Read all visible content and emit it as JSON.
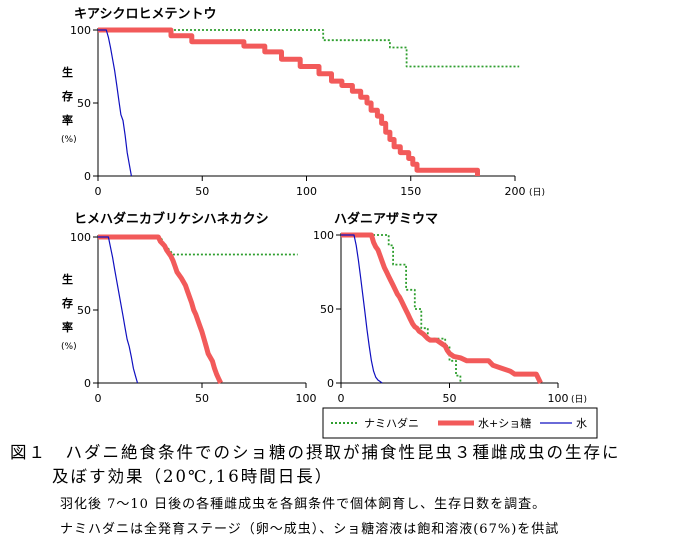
{
  "legend": {
    "items": [
      {
        "key": "nami",
        "label": "ナミハダニ",
        "color": "#2e9e2e"
      },
      {
        "key": "sugar",
        "label": "水+ショ糖",
        "color": "#f25a5a"
      },
      {
        "key": "water",
        "label": "水",
        "color": "#1010c0"
      }
    ]
  },
  "caption": {
    "title_line1": "図１　ハダニ絶食条件でのショ糖の摂取が捕食性昆虫３種雌成虫の生存に",
    "title_line2": "及ぼす効果（20℃,16時間日長）",
    "note1": "羽化後 7〜10 日後の各種雌成虫を各餌条件で個体飼育し、生存日数を調査。",
    "note2": "ナミハダニは全発育ステージ（卵〜成虫）、ショ糖溶液は飽和溶液(67%)を供試"
  },
  "chart_data": [
    {
      "type": "line",
      "title": "キアシクロヒメテントウ",
      "ylabel": "生存率",
      "yunit": "(%)",
      "xunit": "(日)",
      "xlim": [
        0,
        200
      ],
      "ylim": [
        0,
        100
      ],
      "xticks": [
        0,
        50,
        100,
        150,
        200
      ],
      "yticks": [
        0,
        50,
        100
      ],
      "series": [
        {
          "key": "nami",
          "points": [
            [
              0,
              100
            ],
            [
              108,
              100
            ],
            [
              108,
              93
            ],
            [
              140,
              93
            ],
            [
              140,
              88
            ],
            [
              148,
              88
            ],
            [
              148,
              75
            ],
            [
              202,
              75
            ]
          ]
        },
        {
          "key": "sugar",
          "points": [
            [
              0,
              100
            ],
            [
              35,
              100
            ],
            [
              35,
              96
            ],
            [
              45,
              96
            ],
            [
              45,
              92
            ],
            [
              70,
              92
            ],
            [
              70,
              89
            ],
            [
              80,
              89
            ],
            [
              80,
              85
            ],
            [
              88,
              85
            ],
            [
              88,
              80
            ],
            [
              97,
              80
            ],
            [
              97,
              75
            ],
            [
              106,
              75
            ],
            [
              106,
              70
            ],
            [
              112,
              70
            ],
            [
              112,
              65
            ],
            [
              117,
              65
            ],
            [
              117,
              62
            ],
            [
              122,
              62
            ],
            [
              122,
              58
            ],
            [
              126,
              58
            ],
            [
              126,
              54
            ],
            [
              129,
              54
            ],
            [
              129,
              50
            ],
            [
              131,
              50
            ],
            [
              131,
              45
            ],
            [
              134,
              45
            ],
            [
              134,
              41
            ],
            [
              136,
              41
            ],
            [
              136,
              36
            ],
            [
              138,
              36
            ],
            [
              138,
              30
            ],
            [
              140,
              30
            ],
            [
              140,
              25
            ],
            [
              142,
              25
            ],
            [
              142,
              20
            ],
            [
              145,
              20
            ],
            [
              145,
              16
            ],
            [
              149,
              16
            ],
            [
              149,
              12
            ],
            [
              151,
              12
            ],
            [
              151,
              8
            ],
            [
              153,
              8
            ],
            [
              153,
              4
            ],
            [
              182,
              4
            ],
            [
              182,
              0
            ]
          ]
        },
        {
          "key": "water",
          "points": [
            [
              0,
              100
            ],
            [
              4,
              100
            ],
            [
              5,
              95
            ],
            [
              6,
              88
            ],
            [
              7,
              80
            ],
            [
              8,
              72
            ],
            [
              9,
              62
            ],
            [
              10,
              52
            ],
            [
              11,
              42
            ],
            [
              12,
              38
            ],
            [
              13,
              28
            ],
            [
              14,
              16
            ],
            [
              15,
              8
            ],
            [
              16,
              0
            ]
          ]
        }
      ]
    },
    {
      "type": "line",
      "title": "ヒメハダニカブリケシハネカクシ",
      "ylabel": "生存率",
      "yunit": "(%)",
      "xlim": [
        0,
        100
      ],
      "ylim": [
        0,
        100
      ],
      "xticks": [
        0,
        50,
        100
      ],
      "yticks": [
        0,
        50,
        100
      ],
      "series": [
        {
          "key": "nami",
          "points": [
            [
              0,
              100
            ],
            [
              30,
              100
            ],
            [
              32,
              95
            ],
            [
              35,
              90
            ],
            [
              36,
              88
            ],
            [
              96,
              88
            ]
          ]
        },
        {
          "key": "sugar",
          "points": [
            [
              0,
              100
            ],
            [
              29,
              100
            ],
            [
              30,
              97
            ],
            [
              32,
              94
            ],
            [
              33,
              91
            ],
            [
              35,
              87
            ],
            [
              36,
              84
            ],
            [
              37,
              80
            ],
            [
              38,
              76
            ],
            [
              40,
              72
            ],
            [
              42,
              67
            ],
            [
              43,
              63
            ],
            [
              44,
              59
            ],
            [
              45,
              55
            ],
            [
              46,
              50
            ],
            [
              47,
              47
            ],
            [
              48,
              43
            ],
            [
              49,
              39
            ],
            [
              50,
              35
            ],
            [
              51,
              30
            ],
            [
              52,
              25
            ],
            [
              53,
              20
            ],
            [
              55,
              15
            ],
            [
              56,
              10
            ],
            [
              57,
              6
            ],
            [
              58,
              3
            ],
            [
              59,
              0
            ]
          ]
        },
        {
          "key": "water",
          "points": [
            [
              0,
              100
            ],
            [
              5,
              100
            ],
            [
              6,
              93
            ],
            [
              7,
              86
            ],
            [
              8,
              78
            ],
            [
              9,
              70
            ],
            [
              10,
              62
            ],
            [
              11,
              54
            ],
            [
              12,
              46
            ],
            [
              13,
              38
            ],
            [
              14,
              30
            ],
            [
              15,
              25
            ],
            [
              16,
              18
            ],
            [
              17,
              10
            ],
            [
              18,
              5
            ],
            [
              19,
              0
            ]
          ]
        }
      ]
    },
    {
      "type": "line",
      "title": "ハダニアザミウマ",
      "xunit": "(日)",
      "xlim": [
        0,
        100
      ],
      "ylim": [
        0,
        100
      ],
      "xticks": [
        0,
        50,
        100
      ],
      "yticks": [
        0,
        50,
        100
      ],
      "series": [
        {
          "key": "nami",
          "points": [
            [
              0,
              100
            ],
            [
              22,
              100
            ],
            [
              22,
              93
            ],
            [
              24,
              93
            ],
            [
              24,
              80
            ],
            [
              30,
              80
            ],
            [
              30,
              63
            ],
            [
              34,
              63
            ],
            [
              34,
              50
            ],
            [
              37,
              50
            ],
            [
              37,
              37
            ],
            [
              40,
              37
            ],
            [
              40,
              30
            ],
            [
              48,
              30
            ],
            [
              48,
              25
            ],
            [
              50,
              25
            ],
            [
              50,
              15
            ],
            [
              53,
              15
            ],
            [
              53,
              5
            ],
            [
              55,
              5
            ],
            [
              55,
              0
            ]
          ]
        },
        {
          "key": "sugar",
          "points": [
            [
              0,
              100
            ],
            [
              14,
              100
            ],
            [
              15,
              95
            ],
            [
              16,
              92
            ],
            [
              17,
              90
            ],
            [
              18,
              86
            ],
            [
              19,
              82
            ],
            [
              20,
              78
            ],
            [
              21,
              75
            ],
            [
              22,
              72
            ],
            [
              23,
              69
            ],
            [
              24,
              66
            ],
            [
              25,
              63
            ],
            [
              26,
              60
            ],
            [
              27,
              58
            ],
            [
              28,
              55
            ],
            [
              29,
              52
            ],
            [
              30,
              49
            ],
            [
              31,
              46
            ],
            [
              32,
              43
            ],
            [
              33,
              40
            ],
            [
              34,
              38
            ],
            [
              35,
              37
            ],
            [
              36,
              35
            ],
            [
              38,
              33
            ],
            [
              40,
              30
            ],
            [
              41,
              29
            ],
            [
              44,
              29
            ],
            [
              46,
              27
            ],
            [
              48,
              25
            ],
            [
              49,
              22
            ],
            [
              50,
              20
            ],
            [
              52,
              18
            ],
            [
              55,
              17
            ],
            [
              58,
              15
            ],
            [
              68,
              15
            ],
            [
              70,
              12
            ],
            [
              74,
              10
            ],
            [
              78,
              8
            ],
            [
              80,
              6
            ],
            [
              90,
              6
            ],
            [
              91,
              3
            ],
            [
              92,
              0
            ]
          ]
        },
        {
          "key": "water",
          "points": [
            [
              0,
              100
            ],
            [
              6,
              100
            ],
            [
              7,
              93
            ],
            [
              8,
              83
            ],
            [
              9,
              72
            ],
            [
              10,
              60
            ],
            [
              11,
              48
            ],
            [
              12,
              36
            ],
            [
              13,
              25
            ],
            [
              14,
              15
            ],
            [
              15,
              8
            ],
            [
              16,
              4
            ],
            [
              17,
              2
            ],
            [
              18,
              1
            ],
            [
              19,
              0
            ]
          ]
        }
      ]
    }
  ]
}
